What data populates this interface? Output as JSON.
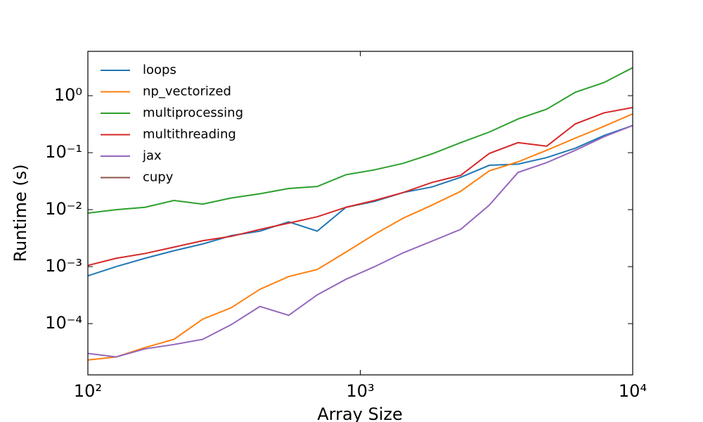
{
  "chart_data": {
    "type": "line",
    "xlabel": "Array Size",
    "ylabel": "Runtime (s)",
    "x": [
      100,
      127,
      162,
      207,
      264,
      336,
      428,
      546,
      695,
      886,
      1129,
      1438,
      1833,
      2336,
      2976,
      3793,
      4833,
      6158,
      7848,
      10000
    ],
    "xscale": "log",
    "yscale": "log",
    "xlim": [
      100,
      10000
    ],
    "ylim": [
      1.26e-05,
      6
    ],
    "xticks": [
      {
        "value": 100,
        "label": "10²"
      },
      {
        "value": 1000,
        "label": "10³"
      },
      {
        "value": 10000,
        "label": "10⁴"
      }
    ],
    "yticks": [
      {
        "value": 0.0001,
        "label": "10⁻⁴"
      },
      {
        "value": 0.001,
        "label": "10⁻³"
      },
      {
        "value": 0.01,
        "label": "10⁻²"
      },
      {
        "value": 0.1,
        "label": "10⁻¹"
      },
      {
        "value": 1,
        "label": "10⁰"
      }
    ],
    "legend": "upper left",
    "series": [
      {
        "name": "loops",
        "color": "#1f77b4",
        "values": [
          0.00069,
          0.001,
          0.0014,
          0.0019,
          0.0025,
          0.0035,
          0.0042,
          0.0061,
          0.0042,
          0.011,
          0.014,
          0.02,
          0.025,
          0.037,
          0.06,
          0.063,
          0.082,
          0.12,
          0.2,
          0.3
        ]
      },
      {
        "name": "np_vectorized",
        "color": "#ff7f0e",
        "values": [
          2.3e-05,
          2.6e-05,
          3.8e-05,
          5.3e-05,
          0.00012,
          0.00019,
          0.0004,
          0.00067,
          0.00089,
          0.0018,
          0.0037,
          0.0071,
          0.012,
          0.021,
          0.048,
          0.069,
          0.11,
          0.18,
          0.29,
          0.48
        ]
      },
      {
        "name": "multiprocessing",
        "color": "#2ca02c",
        "values": [
          0.0087,
          0.01,
          0.011,
          0.0145,
          0.0125,
          0.016,
          0.019,
          0.0235,
          0.0255,
          0.041,
          0.05,
          0.065,
          0.095,
          0.15,
          0.23,
          0.39,
          0.58,
          1.15,
          1.7,
          3.1
        ]
      },
      {
        "name": "multithreading",
        "color": "#d62728",
        "values": [
          0.00105,
          0.0014,
          0.0017,
          0.0022,
          0.00285,
          0.0034,
          0.0045,
          0.0058,
          0.0075,
          0.011,
          0.0145,
          0.02,
          0.03,
          0.04,
          0.097,
          0.15,
          0.13,
          0.32,
          0.5,
          0.62
        ]
      },
      {
        "name": "jax",
        "color": "#9467bd",
        "values": [
          3e-05,
          2.6e-05,
          3.6e-05,
          4.3e-05,
          5.3e-05,
          9.6e-05,
          0.0002,
          0.00014,
          0.00032,
          0.0006,
          0.001,
          0.00175,
          0.0028,
          0.0045,
          0.012,
          0.045,
          0.067,
          0.11,
          0.19,
          0.3
        ]
      },
      {
        "name": "cupy",
        "color": "#8c564b",
        "values": [
          null,
          null,
          null,
          null,
          null,
          null,
          null,
          null,
          null,
          null,
          null,
          null,
          null,
          null,
          null,
          null,
          null,
          null,
          null,
          null
        ]
      }
    ]
  }
}
